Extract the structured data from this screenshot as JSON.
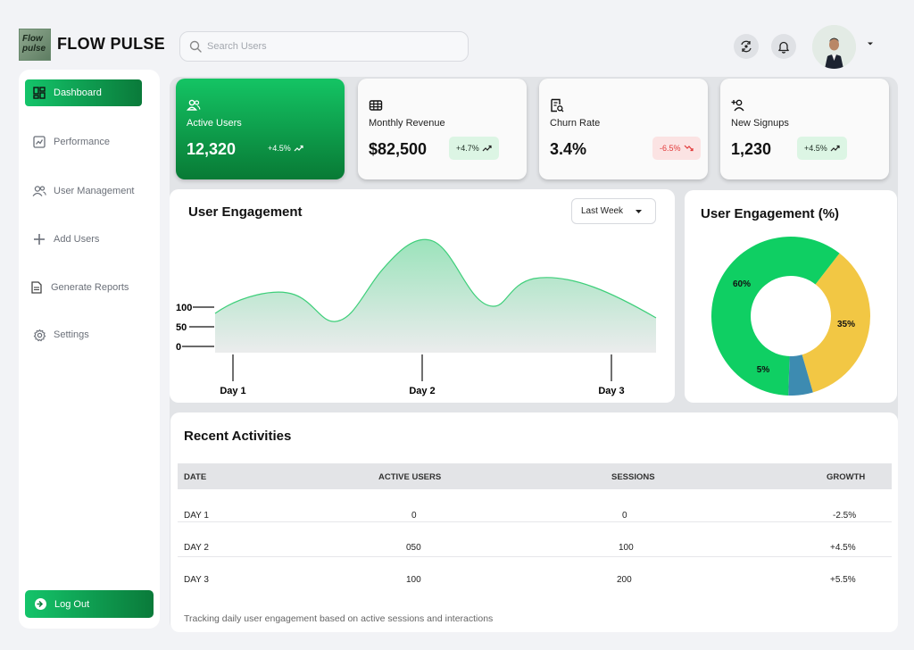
{
  "brand": {
    "logo_text": "Flow pulse",
    "name": "FLOW PULSE"
  },
  "search": {
    "placeholder": "Search Users",
    "value": ""
  },
  "header": {
    "sync_icon": "sync-icon",
    "bell_icon": "bell-icon",
    "caret_icon": "chevron-down-icon"
  },
  "sidebar": {
    "items": [
      {
        "label": "Dashboard",
        "icon": "dashboard-icon",
        "active": true
      },
      {
        "label": "Performance",
        "icon": "chart-icon",
        "active": false
      },
      {
        "label": "User Management",
        "icon": "users-icon",
        "active": false
      },
      {
        "label": "Add Users",
        "icon": "plus-icon",
        "active": false
      },
      {
        "label": "Generate Reports",
        "icon": "report-icon",
        "active": false
      },
      {
        "label": "Settings",
        "icon": "gear-icon",
        "active": false
      }
    ],
    "logout": "Log Out"
  },
  "cards": [
    {
      "title": "Active Users",
      "value": "12,320",
      "change": "+4.5%",
      "trend": "up",
      "icon": "users-icon"
    },
    {
      "title": "Monthly Revenue",
      "value": "$82,500",
      "change": "+4.7%",
      "trend": "up",
      "icon": "grid-icon"
    },
    {
      "title": "Churn Rate",
      "value": "3.4%",
      "change": "-6.5%",
      "trend": "down",
      "icon": "document-search-icon"
    },
    {
      "title": "New Signups",
      "value": "1,230",
      "change": "+4.5%",
      "trend": "up",
      "icon": "add-user-icon"
    }
  ],
  "engagement": {
    "title": "User Engagement",
    "dropdown": "Last Week"
  },
  "engagement_pct": {
    "title": "User Engagement (%)"
  },
  "chart_data": [
    {
      "type": "area",
      "title": "User Engagement",
      "categories": [
        "Day 1",
        "Day 2",
        "Day 3"
      ],
      "yticks": [
        "100",
        "50",
        "0"
      ],
      "xlabel": "",
      "ylabel": "",
      "grid": false,
      "color": "#3ecf7a"
    },
    {
      "type": "pie",
      "title": "User Engagement (%)",
      "slices": [
        {
          "label": "60%",
          "value": 60,
          "color": "#0fcf63"
        },
        {
          "label": "35%",
          "value": 35,
          "color": "#f2c744"
        },
        {
          "label": "5%",
          "value": 5,
          "color": "#3d8bb1"
        }
      ]
    }
  ],
  "activities": {
    "title": "Recent Activities",
    "columns": [
      "DATE",
      "ACTIVE USERS",
      "SESSIONS",
      "GROWTH"
    ],
    "rows": [
      [
        "DAY 1",
        "0",
        "0",
        "-2.5%"
      ],
      [
        "DAY 2",
        "050",
        "100",
        "+4.5%"
      ],
      [
        "DAY 3",
        "100",
        "200",
        "+5.5%"
      ]
    ],
    "note": "Tracking daily user engagement based on active sessions and interactions"
  },
  "colors": {
    "accent": "#14c46a",
    "accent_dark": "#0a7a3a",
    "danger": "#e23a3a"
  }
}
